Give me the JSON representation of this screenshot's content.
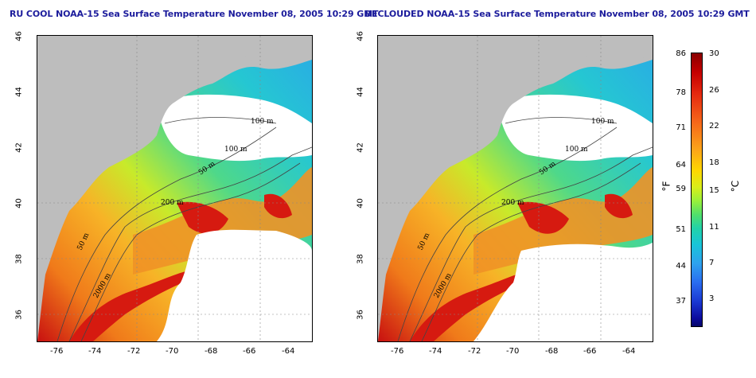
{
  "titles": {
    "left": "RU COOL NOAA-15 Sea Surface Temperature November 08, 2005 10:29 GMT",
    "right": "DECLOUDED NOAA-15 Sea Surface Temperature November 08, 2005 10:29 GMT"
  },
  "axes": {
    "x_ticks": [
      "-76",
      "-74",
      "-72",
      "-70",
      "-68",
      "-66",
      "-64"
    ],
    "y_ticks": [
      "46",
      "44",
      "42",
      "40",
      "38",
      "36"
    ]
  },
  "contours": {
    "labels_left": [
      "100 m",
      "100 m",
      "50 m",
      "200 m",
      "50 m",
      "2000 m"
    ],
    "labels_right": [
      "100 m",
      "100 m",
      "50 m",
      "200 m",
      "50 m",
      "2000 m"
    ]
  },
  "colorbar": {
    "fahrenheit_labels": [
      "86",
      "78",
      "71",
      "64",
      "59",
      "51",
      "44",
      "37"
    ],
    "celsius_labels": [
      "30",
      "26",
      "22",
      "18",
      "15",
      "11",
      "7",
      "3"
    ],
    "fahrenheit_unit": "°F",
    "celsius_unit": "°C"
  },
  "colors": {
    "land": "#bdbdbd",
    "cloud": "#ffffff",
    "warm": "#d81a0e",
    "cool": "#18c5d8",
    "title": "#1c1c9c"
  }
}
